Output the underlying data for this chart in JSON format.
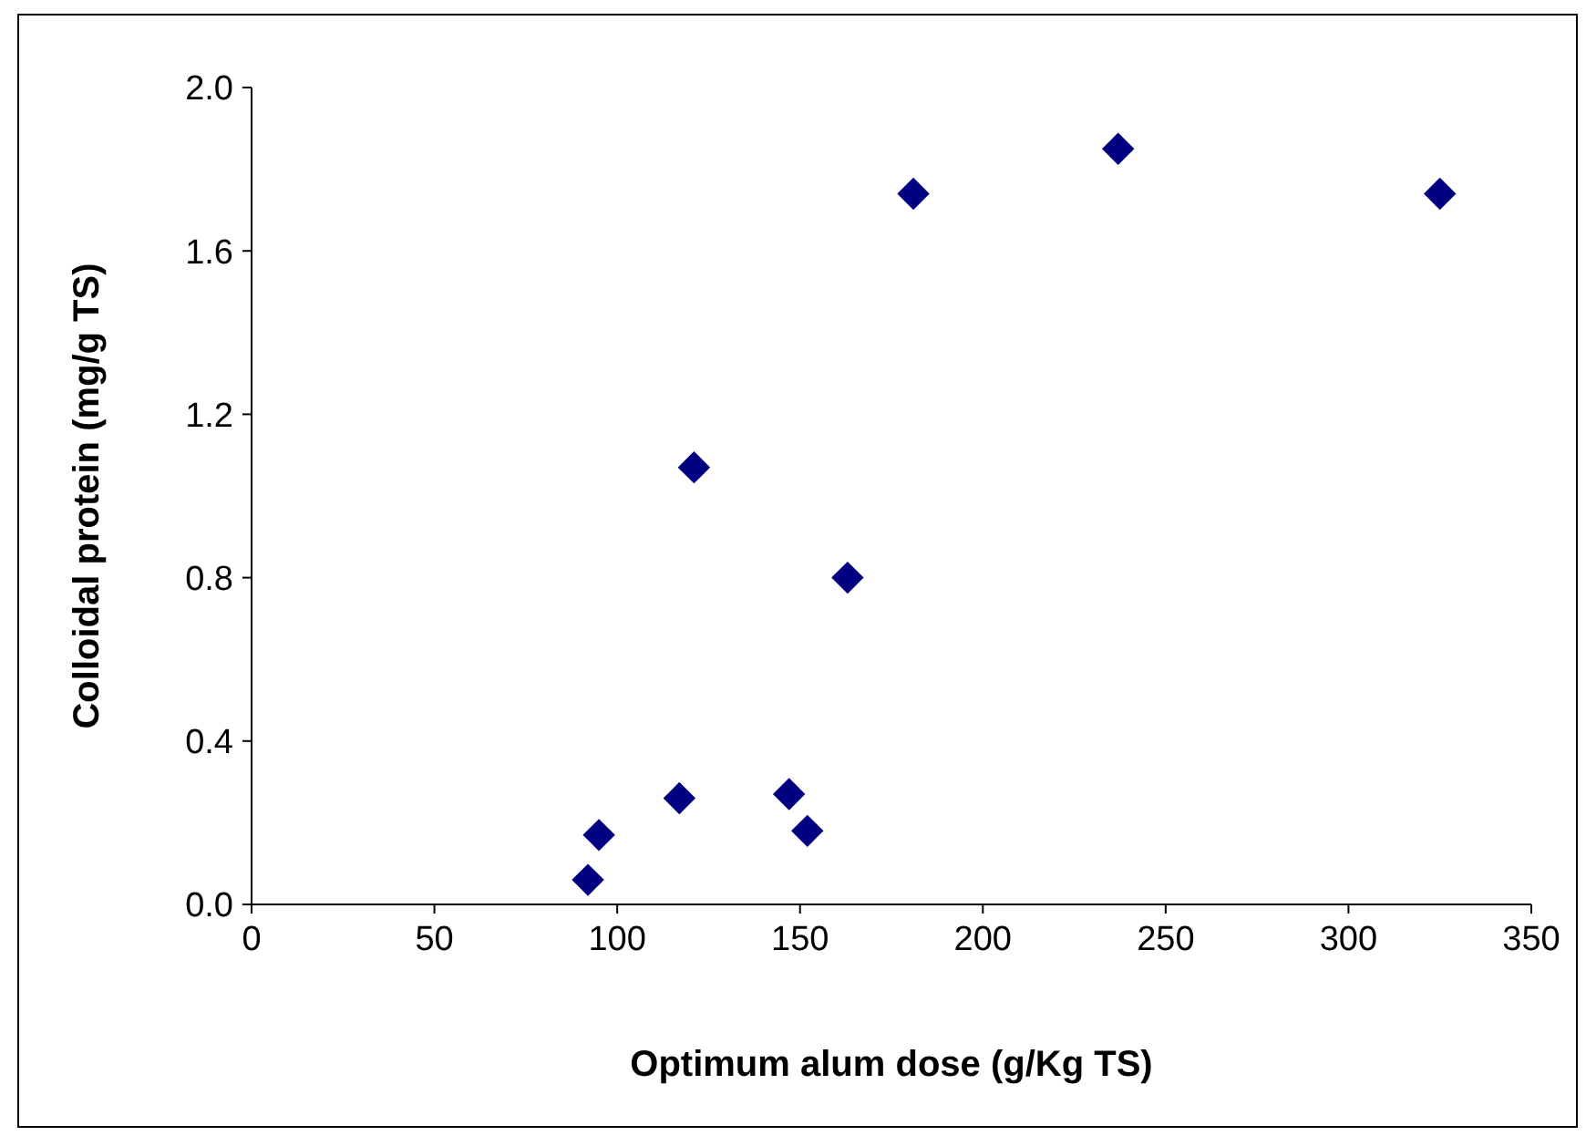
{
  "chart_data": {
    "type": "scatter",
    "xlabel": "Optimum alum dose (g/Kg TS)",
    "ylabel": "Colloidal protein (mg/g TS)",
    "x": [
      92,
      95,
      117,
      121,
      147,
      152,
      163,
      181,
      237,
      325
    ],
    "series": [
      {
        "color": "#000080",
        "values": [
          0.06,
          0.17,
          0.26,
          1.07,
          0.27,
          0.18,
          0.8,
          1.74,
          1.85,
          1.74
        ]
      }
    ],
    "xlim": [
      0,
      350
    ],
    "xticks": [
      0,
      50,
      100,
      150,
      200,
      250,
      300,
      350
    ],
    "ylim": [
      0,
      2.0
    ],
    "yticks": [
      {
        "value": 0,
        "label": "0.0"
      },
      {
        "value": 0.4,
        "label": "0.4"
      },
      {
        "value": 0.8,
        "label": "0.8"
      },
      {
        "value": 1.2,
        "label": "1.2"
      },
      {
        "value": 1.6,
        "label": "1.6"
      },
      {
        "value": 2.0,
        "label": "2.0"
      }
    ],
    "marker": "diamond"
  }
}
